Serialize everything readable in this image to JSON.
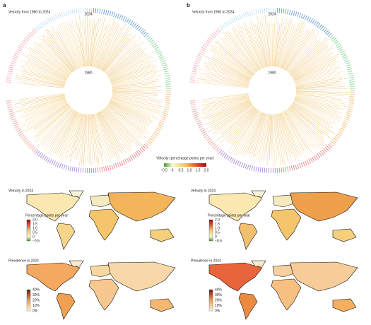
{
  "panels": [
    {
      "label": "a",
      "title": "Velocity from 1980 to 2024",
      "outer_year": "2024",
      "inner_year": "1980"
    },
    {
      "label": "b",
      "title": "Velocity from 1980 to 2024",
      "outer_year": "2024",
      "inner_year": "1980"
    }
  ],
  "velocity_legend": {
    "title": "Velocity (percentage points per year)",
    "ticks": [
      "−0.5",
      "0",
      "0.5",
      "1.0",
      "1.5",
      "2.0"
    ]
  },
  "maps": [
    {
      "title": "Velocity in 2024",
      "legend_title": "Percentage points per year",
      "legend_ticks": [
        "2.0",
        "1.5",
        "1.0",
        "0.5",
        "0",
        "−0.5"
      ]
    },
    {
      "title": "Velocity in 2024",
      "legend_title": "Percentage points per year",
      "legend_ticks": [
        "2.0",
        "1.5",
        "1.0",
        "0.5",
        "0",
        "−0.5"
      ]
    },
    {
      "title": "Prevalence in 2024",
      "legend_title": "",
      "legend_ticks": [
        "40%",
        "30%",
        "20%",
        "10%",
        "0%"
      ]
    },
    {
      "title": "Prevalence in 2024",
      "legend_title": "",
      "legend_ticks": [
        "40%",
        "30%",
        "20%",
        "10%",
        "0%"
      ]
    }
  ]
}
